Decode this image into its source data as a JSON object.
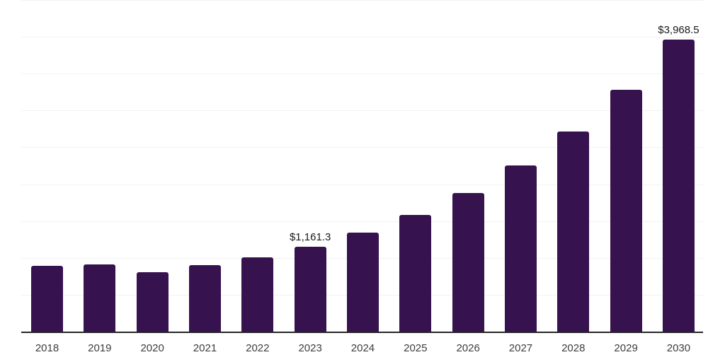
{
  "page": {
    "background_color": "#ffffff"
  },
  "chart_data": {
    "type": "bar",
    "title": "",
    "xlabel": "",
    "ylabel": "",
    "categories": [
      "2018",
      "2019",
      "2020",
      "2021",
      "2022",
      "2023",
      "2024",
      "2025",
      "2026",
      "2027",
      "2028",
      "2029",
      "2030"
    ],
    "values": [
      900,
      925,
      815,
      910,
      1015,
      1161.3,
      1350,
      1590,
      1895,
      2260,
      2725,
      3290,
      3968.5
    ],
    "data_labels": {
      "2023": "$1,161.3",
      "2030": "$3,968.5"
    },
    "ylim": [
      0,
      4500
    ],
    "gridline_step": 500,
    "grid": true,
    "legend": false,
    "colors": {
      "bar": "#36124e",
      "axis_line": "#262626",
      "gridline": "#f2f2f2",
      "tick_label": "#3d3d3d",
      "data_label": "#1a1a1a"
    }
  }
}
